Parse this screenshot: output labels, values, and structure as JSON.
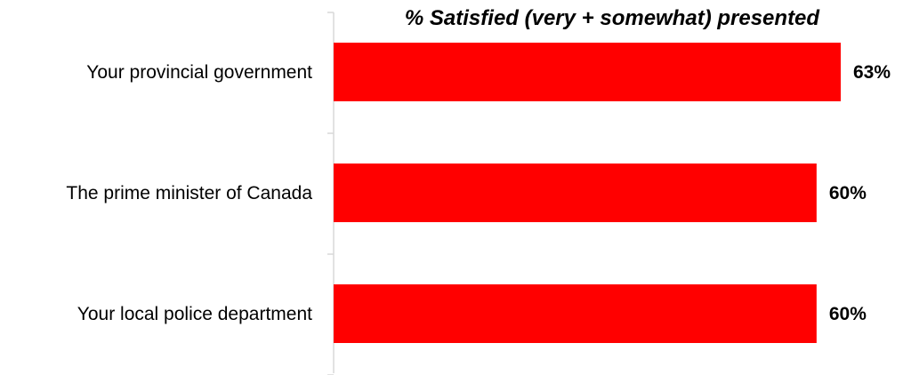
{
  "chart_data": {
    "type": "bar",
    "orientation": "horizontal",
    "title": "% Satisfied (very + somewhat) presented",
    "categories": [
      "Your provincial government",
      "The prime minister of Canada",
      "Your local police department"
    ],
    "values": [
      63,
      60,
      60
    ],
    "value_labels": [
      "63%",
      "60%",
      "60%"
    ],
    "xlim": [
      0,
      63
    ],
    "grid": false,
    "bar_color": "#ff0000",
    "axis_color": "#d9d9d9"
  }
}
